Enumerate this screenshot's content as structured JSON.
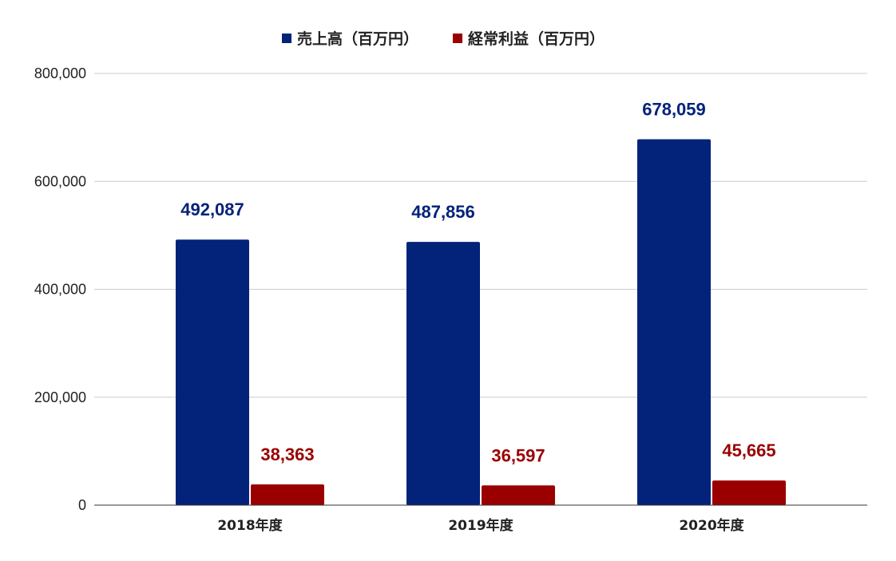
{
  "chart_data": {
    "type": "bar",
    "categories": [
      "2018年度",
      "2019年度",
      "2020年度"
    ],
    "series": [
      {
        "name": "売上高（百万円）",
        "color": "#03227a",
        "values": [
          492087,
          487856,
          678059
        ],
        "labels": [
          "492,087",
          "487,856",
          "678,059"
        ]
      },
      {
        "name": "経常利益（百万円）",
        "color": "#9b0000",
        "values": [
          38363,
          36597,
          45665
        ],
        "labels": [
          "38,363",
          "36,597",
          "45,665"
        ]
      }
    ],
    "ylim": [
      0,
      800000
    ],
    "yticks": [
      0,
      200000,
      400000,
      600000,
      800000
    ],
    "ytick_labels": [
      "0",
      "200,000",
      "400,000",
      "600,000",
      "800,000"
    ],
    "title": "",
    "xlabel": "",
    "ylabel": "",
    "grid": true,
    "legend_position": "top-center"
  }
}
